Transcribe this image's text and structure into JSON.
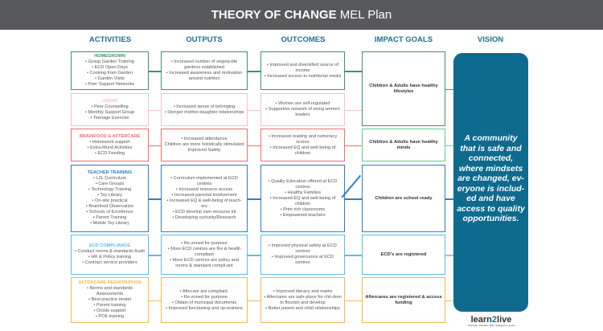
{
  "header": {
    "title_bold": "THEORY OF CHANGE",
    "title_rest": " MEL Plan"
  },
  "columns": [
    "ACTIVITIES",
    "OUTPUTS",
    "OUTCOMES",
    "IMPACT GOALS",
    "VISION"
  ],
  "colors": {
    "header_bg": "#58595b",
    "column_heading": "#1f6f97",
    "vision_bg": "#0e6a8e"
  },
  "rows": [
    {
      "color": "#3d9467",
      "title": "HOMEGROWN",
      "activities": [
        "• Group Garden Training",
        "• ECD Open Days",
        "• Cooking from Garden",
        "• Garden Visits",
        "• Peer Support Networks"
      ],
      "outputs": [
        "• Increased number of vegeta-ble gardens established",
        "• Increased awareness and motivation around nutrition"
      ],
      "outcomes": [
        "• Improved and diversified source of income",
        "• Increased access to nutritional meals"
      ]
    },
    {
      "color": "#f7bfd2",
      "title": "UBOMI",
      "activities": [
        "• Peer Counselling",
        "• Monthly Support Group",
        "• Teenage Exercise"
      ],
      "outputs": [
        "• Increased sense of belonging",
        "• Stonger mother-daughter relationships"
      ],
      "outcomes": [
        "• Women are self-regulated",
        "• Supportive network of stong women leaders"
      ]
    },
    {
      "color": "#f26d6d",
      "title": "BRAINFOOD & AFTERCARE",
      "activities": [
        "• Homework support",
        "• Extra-Mural Activities",
        "• ECD Feeding"
      ],
      "outputs": [
        "• Increased attendance",
        "Children are more holistically stimulated",
        "Improved Safety"
      ],
      "outcomes": [
        "• Increased reading and numeracy scores",
        "• Increased EQ and well-being of children"
      ]
    },
    {
      "color": "#2f7fc1",
      "title": "TEACHER TRAINING",
      "activities": [
        "• L2L Curriculum",
        "• Care Groups",
        "• Technology Training",
        "• Toy Library",
        "• On-site practical",
        "• Brainfood Observation",
        "• Schools of Excellence",
        "• Parent Training",
        "• Mobile Toy Library"
      ],
      "outputs": [
        "• Curriculum implemented at ECD centres",
        "• Increased resource access",
        "• Increased parental involvement",
        "• Increased EQ & well-being of teach-ers",
        "• ECD develop own recourse kit",
        "• Developing curiosity/Research"
      ],
      "outcomes": [
        "• Quality Education offered at ECD centres",
        "• Healthy Families",
        "• Increased EQ and well-being of children",
        "• Print rich classrooms",
        "• Empowered teachers"
      ]
    },
    {
      "color": "#5cbde8",
      "title": "ECD COMPLIANCE",
      "activities": [
        "• Conduct norms & standards Audit",
        "• HR & Policy training",
        "• Contract service providers"
      ],
      "outputs": [
        "• Re-zoned for purpose",
        "• More ECD centres are fire & health compliant",
        "• More ECD centres are policy and norms & standard compli-ant"
      ],
      "outcomes": [
        "• Improved physical safety at ECD centres",
        "• Improved governance at ECD centres"
      ]
    },
    {
      "color": "#f7b84e",
      "title": "AFTERCARE REGISTRATION",
      "activities": [
        "• Norms and standards Assessments",
        "• Best practice model",
        "• Parent training",
        "• Onsite support",
        "• POE training"
      ],
      "outputs": [
        "• Aftecare are compliant.",
        "• Re-zoned for purpose",
        "• Obtain of municipal documents",
        "• Improved functioning and op-erations"
      ],
      "outcomes": [
        "• Improved literacy and maths",
        "• Aftercares are safe place for chil-dren to flourish and develop",
        "• Better parent and child relationships"
      ]
    }
  ],
  "impact_goals": [
    {
      "label": "Children & Adults have healthy lifestyles",
      "color": "#3d9467"
    },
    {
      "label": "Children & Adults have healthy minds",
      "color": "#62cc8e"
    },
    {
      "label": "Children are school ready",
      "color": "#2f7fc1"
    },
    {
      "label": "ECD's are registered",
      "color": "#5cbde8"
    },
    {
      "label": "Aftercares are registered & access funding",
      "color": "#f7b84e"
    }
  ],
  "vision": "A community that is safe and connected, where mindsets are changed, ev-eryone is includ-ed and have access to quality opportunities.",
  "logo": {
    "name_a": "learn",
    "name_b": "2",
    "name_c": "live",
    "tagline": "community • education • faith • development • growth"
  }
}
